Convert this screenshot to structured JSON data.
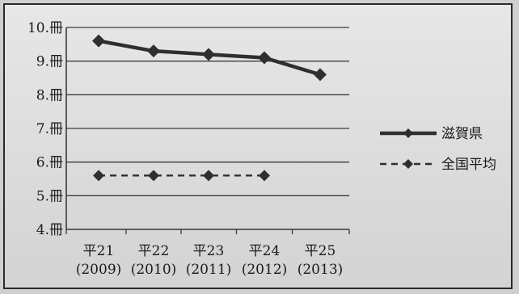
{
  "chart_data": {
    "type": "line",
    "categories": [
      {
        "line1": "平21",
        "line2": "(2009)"
      },
      {
        "line1": "平22",
        "line2": "(2010)"
      },
      {
        "line1": "平23",
        "line2": "(2011)"
      },
      {
        "line1": "平24",
        "line2": "(2012)"
      },
      {
        "line1": "平25",
        "line2": "(2013)"
      }
    ],
    "y_ticks": [
      {
        "value": 4,
        "label": "4.冊"
      },
      {
        "value": 5,
        "label": "5.冊"
      },
      {
        "value": 6,
        "label": "6.冊"
      },
      {
        "value": 7,
        "label": "7.冊"
      },
      {
        "value": 8,
        "label": "8.冊"
      },
      {
        "value": 9,
        "label": "9.冊"
      },
      {
        "value": 10,
        "label": "10.冊"
      }
    ],
    "ylim": [
      4,
      10
    ],
    "grid": "horizontal",
    "legend_position": "right",
    "series": [
      {
        "name": "滋賀県",
        "line_style": "solid",
        "values": [
          9.6,
          9.3,
          9.2,
          9.1,
          8.6
        ]
      },
      {
        "name": "全国平均",
        "line_style": "dashed",
        "values": [
          5.6,
          5.6,
          5.6,
          5.6,
          null
        ]
      }
    ],
    "colors": {
      "line": "#2f2f2f",
      "grid": "#3a3a3a",
      "text": "#1a1a1a"
    }
  }
}
